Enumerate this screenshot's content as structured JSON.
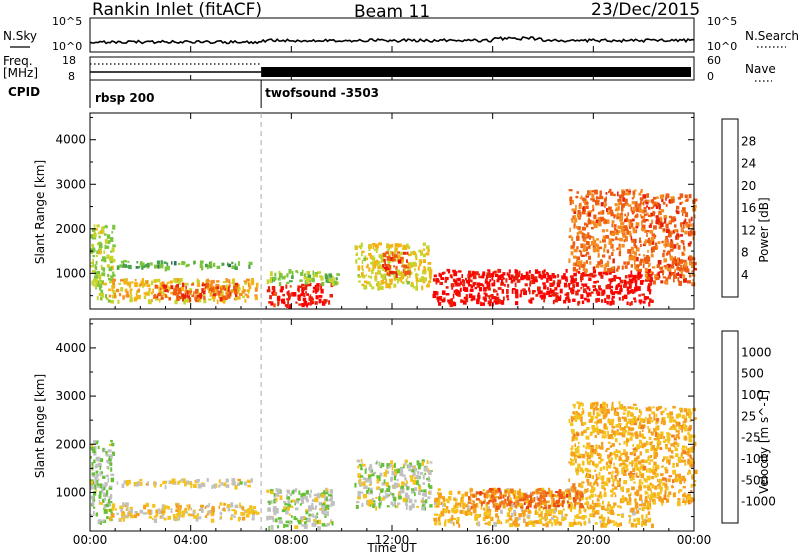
{
  "header": {
    "station": "Rankin Inlet (fitACF)",
    "beam": "Beam 11",
    "date": "23/Dec/2015"
  },
  "top_panels": {
    "nsky_label": "N.Sky",
    "nsearch_label": "N.Search",
    "nsky_ticks": [
      "10^5",
      "10^0"
    ],
    "nsearch_ticks": [
      "10^5",
      "10^0"
    ],
    "freq_label": "Freq.",
    "freq_unit": "[MHz]",
    "freq_ticks": [
      "18",
      "8"
    ],
    "nave_label": "Nave",
    "nave_ticks": [
      "60",
      "0"
    ],
    "cpid_label": "CPID",
    "cpid_segments": [
      {
        "name": "rbsp 200",
        "start": 0,
        "end": 6.8
      },
      {
        "name": "twofsound -3503",
        "start": 6.8,
        "end": 24
      }
    ]
  },
  "power_colorbar": {
    "title": "Power [dB]",
    "ticks": [
      "4",
      "8",
      "12",
      "16",
      "20",
      "24",
      "28"
    ],
    "colors": [
      "#0000ff",
      "#1f4fb4",
      "#2e6e5a",
      "#49a24a",
      "#7cc43a",
      "#c7d42c",
      "#f4b312",
      "#f58c20",
      "#ee5b12",
      "#e8210a",
      "#ff0000"
    ]
  },
  "velocity_colorbar": {
    "title": "Velocity [m s^-1]",
    "ticks": [
      "1000",
      "500",
      "100",
      "25",
      "-25",
      "-100",
      "-500",
      "-1000"
    ],
    "colors": [
      "#2040c0",
      "#2d5fa5",
      "#2a6e5a",
      "#3f9440",
      "#64c034",
      "#c0c0c0",
      "#f5c21b",
      "#f59f1c",
      "#f07c21",
      "#ee5a12",
      "#e8300a",
      "#ff0000"
    ]
  },
  "axes": {
    "ylabel": "Slant Range [km]",
    "xlabel": "Time UT",
    "y_ticks": [
      "1000",
      "2000",
      "3000",
      "4000"
    ],
    "x_ticks": [
      "00:00",
      "04:00",
      "08:00",
      "12:00",
      "16:00",
      "20:00",
      "00:00"
    ]
  },
  "chart_data": {
    "type": "heatmap",
    "title": "Rankin Inlet (fitACF)",
    "x_unit": "hours UT",
    "xlim": [
      0,
      24
    ],
    "ylim": [
      200,
      4600
    ],
    "xlabel": "Time UT",
    "ylabel": "Slant Range [km]",
    "mode_change_time": 6.8,
    "freq_mhz": {
      "before": 10.5,
      "after": 10.0
    },
    "power_panel": {
      "quantity": "Power [dB]",
      "range": [
        0,
        30
      ],
      "regions": [
        {
          "t0": 0.0,
          "t1": 0.9,
          "r0": 400,
          "r1": 2100,
          "value": 14
        },
        {
          "t0": 0.7,
          "t1": 6.6,
          "r0": 400,
          "r1": 900,
          "value": 18
        },
        {
          "t0": 2.5,
          "t1": 5.8,
          "r0": 450,
          "r1": 800,
          "value": 24
        },
        {
          "t0": 1.0,
          "t1": 6.5,
          "r0": 1150,
          "r1": 1300,
          "value": 10
        },
        {
          "t0": 7.0,
          "t1": 9.6,
          "r0": 300,
          "r1": 800,
          "value": 27
        },
        {
          "t0": 7.0,
          "t1": 9.8,
          "r0": 800,
          "r1": 1100,
          "value": 13
        },
        {
          "t0": 10.5,
          "t1": 13.5,
          "r0": 700,
          "r1": 1700,
          "value": 16
        },
        {
          "t0": 11.6,
          "t1": 12.6,
          "r0": 1000,
          "r1": 1500,
          "value": 25
        },
        {
          "t0": 13.6,
          "t1": 22.3,
          "r0": 350,
          "r1": 1100,
          "value": 28
        },
        {
          "t0": 19.0,
          "t1": 22.0,
          "r0": 1100,
          "r1": 2900,
          "value": 22
        },
        {
          "t0": 22.0,
          "t1": 24.0,
          "r0": 800,
          "r1": 2800,
          "value": 23
        }
      ]
    },
    "velocity_panel": {
      "quantity": "Velocity [m s^-1]",
      "range": [
        -1000,
        1000
      ],
      "regions": [
        {
          "t0": 0.0,
          "t1": 0.9,
          "r0": 400,
          "r1": 2100,
          "value": 150
        },
        {
          "t0": 0.7,
          "t1": 6.6,
          "r0": 450,
          "r1": 800,
          "value": -60
        },
        {
          "t0": 1.0,
          "t1": 6.5,
          "r0": 1150,
          "r1": 1300,
          "value": 0
        },
        {
          "t0": 7.0,
          "t1": 9.6,
          "r0": 300,
          "r1": 1100,
          "value": 120
        },
        {
          "t0": 10.5,
          "t1": 13.5,
          "r0": 700,
          "r1": 1700,
          "value": 100
        },
        {
          "t0": 13.6,
          "t1": 22.3,
          "r0": 350,
          "r1": 1100,
          "value": -150
        },
        {
          "t0": 15.0,
          "t1": 19.5,
          "r0": 700,
          "r1": 1100,
          "value": -500
        },
        {
          "t0": 19.0,
          "t1": 22.0,
          "r0": 1100,
          "r1": 2900,
          "value": -180
        },
        {
          "t0": 22.0,
          "t1": 24.0,
          "r0": 800,
          "r1": 2800,
          "value": -180
        }
      ]
    }
  }
}
